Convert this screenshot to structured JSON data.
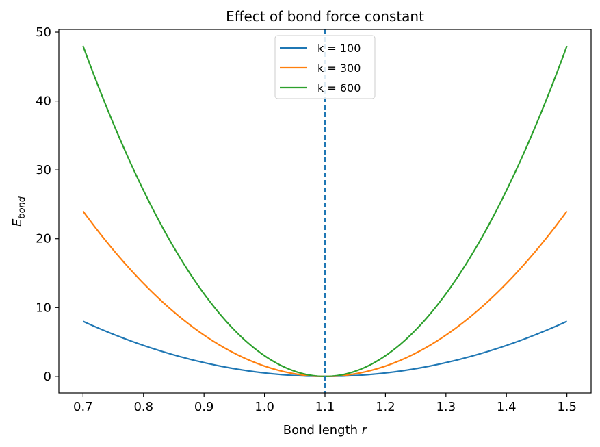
{
  "chart_data": {
    "type": "line",
    "title": "Effect of bond force constant",
    "xlabel": "Bond length r",
    "xlabel_parts": {
      "text": "Bond length ",
      "var": "r"
    },
    "ylabel_parts": {
      "base": "E",
      "sub": "bond"
    },
    "xlim": [
      0.66,
      1.54
    ],
    "ylim": [
      -2.4,
      50.4
    ],
    "xticks": [
      0.7,
      0.8,
      0.9,
      1.0,
      1.1,
      1.2,
      1.3,
      1.4,
      1.5
    ],
    "xtick_labels": [
      "0.7",
      "0.8",
      "0.9",
      "1.0",
      "1.1",
      "1.2",
      "1.3",
      "1.4",
      "1.5"
    ],
    "yticks": [
      0,
      10,
      20,
      30,
      40,
      50
    ],
    "ytick_labels": [
      "0",
      "10",
      "20",
      "30",
      "40",
      "50"
    ],
    "equilibrium_r": 1.1,
    "x": [
      0.7,
      0.75,
      0.8,
      0.85,
      0.9,
      0.95,
      1.0,
      1.05,
      1.1,
      1.15,
      1.2,
      1.25,
      1.3,
      1.35,
      1.4,
      1.45,
      1.5
    ],
    "series": [
      {
        "name": "k = 100",
        "color": "#1f77b4",
        "values": [
          8.0,
          6.125,
          4.5,
          3.125,
          2.0,
          1.125,
          0.5,
          0.125,
          0.0,
          0.125,
          0.5,
          1.125,
          2.0,
          3.125,
          4.5,
          6.125,
          8.0
        ]
      },
      {
        "name": "k = 300",
        "color": "#ff7f0e",
        "values": [
          24.0,
          18.375,
          13.5,
          9.375,
          6.0,
          3.375,
          1.5,
          0.375,
          0.0,
          0.375,
          1.5,
          3.375,
          6.0,
          9.375,
          13.5,
          18.375,
          24.0
        ]
      },
      {
        "name": "k = 600",
        "color": "#2ca02c",
        "values": [
          48.0,
          36.75,
          27.0,
          18.75,
          12.0,
          6.75,
          3.0,
          0.75,
          0.0,
          0.75,
          3.0,
          6.75,
          12.0,
          18.75,
          27.0,
          36.75,
          48.0
        ]
      }
    ],
    "vline": {
      "x": 1.1,
      "style": "dashed",
      "color": "#1f77b4"
    },
    "legend_position": "top-center",
    "grid": false
  }
}
